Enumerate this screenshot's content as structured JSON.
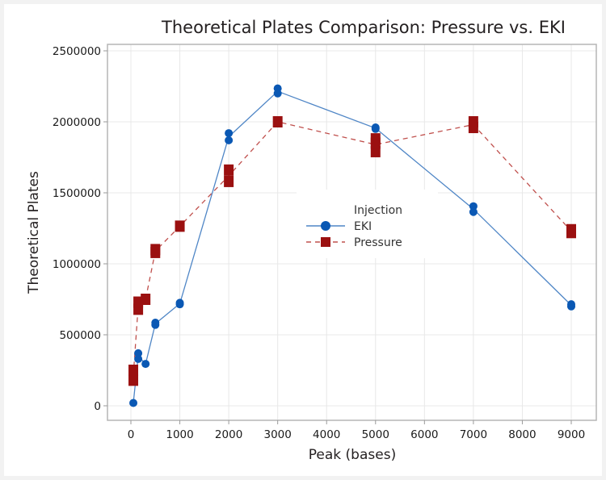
{
  "chart_data": {
    "type": "line",
    "title": "Theoretical Plates Comparison: Pressure vs. EKI",
    "xlabel": "Peak (bases)",
    "ylabel": "Theoretical Plates",
    "xlim": [
      -450,
      9500
    ],
    "ylim": [
      -45000,
      2560000
    ],
    "xticks": [
      0,
      1000,
      2000,
      3000,
      4000,
      5000,
      6000,
      7000,
      8000,
      9000
    ],
    "xtick_labels": [
      "0",
      "1000",
      "2000",
      "3000",
      "4000",
      "5000",
      "6000",
      "7000",
      "8000",
      "9000"
    ],
    "yticks": [
      0,
      500000,
      1000000,
      1500000,
      2000000,
      2500000
    ],
    "ytick_labels": [
      "0",
      "500000",
      "1000000",
      "1500000",
      "2000000",
      "2500000"
    ],
    "grid": true,
    "legend": {
      "title": "Injection",
      "placement": "center-right",
      "entries": [
        "EKI",
        "Pressure"
      ]
    },
    "series": [
      {
        "name": "EKI",
        "color": "#0a58b4",
        "line_color": "#4f86c6",
        "marker": "circle",
        "line_style": "solid",
        "points": [
          [
            50,
            20000
          ],
          [
            150,
            330000
          ],
          [
            150,
            370000
          ],
          [
            300,
            295000
          ],
          [
            500,
            570000
          ],
          [
            500,
            585000
          ],
          [
            1000,
            715000
          ],
          [
            1000,
            725000
          ],
          [
            2000,
            1870000
          ],
          [
            2000,
            1920000
          ],
          [
            3000,
            2200000
          ],
          [
            3000,
            2235000
          ],
          [
            5000,
            1950000
          ],
          [
            5000,
            1960000
          ],
          [
            7000,
            1365000
          ],
          [
            7000,
            1405000
          ],
          [
            9000,
            700000
          ],
          [
            9000,
            715000
          ]
        ],
        "line": [
          [
            50,
            20000
          ],
          [
            150,
            350000
          ],
          [
            300,
            295000
          ],
          [
            500,
            578000
          ],
          [
            1000,
            720000
          ],
          [
            2000,
            1895000
          ],
          [
            3000,
            2215000
          ],
          [
            5000,
            1955000
          ],
          [
            7000,
            1385000
          ],
          [
            9000,
            708000
          ]
        ]
      },
      {
        "name": "Pressure",
        "color": "#9b1010",
        "line_color": "#c0504d",
        "marker": "square",
        "line_style": "dashed",
        "points": [
          [
            50,
            180000
          ],
          [
            50,
            250000
          ],
          [
            150,
            680000
          ],
          [
            150,
            730000
          ],
          [
            300,
            750000
          ],
          [
            500,
            1080000
          ],
          [
            500,
            1100000
          ],
          [
            1000,
            1265000
          ],
          [
            2000,
            1580000
          ],
          [
            2000,
            1660000
          ],
          [
            3000,
            2000000
          ],
          [
            5000,
            1790000
          ],
          [
            5000,
            1850000
          ],
          [
            5000,
            1880000
          ],
          [
            7000,
            1960000
          ],
          [
            7000,
            2000000
          ],
          [
            9000,
            1220000
          ],
          [
            9000,
            1240000
          ]
        ],
        "line": [
          [
            50,
            215000
          ],
          [
            150,
            705000
          ],
          [
            300,
            750000
          ],
          [
            500,
            1090000
          ],
          [
            1000,
            1265000
          ],
          [
            2000,
            1620000
          ],
          [
            3000,
            2000000
          ],
          [
            5000,
            1840000
          ],
          [
            7000,
            1980000
          ],
          [
            9000,
            1230000
          ]
        ]
      }
    ]
  }
}
